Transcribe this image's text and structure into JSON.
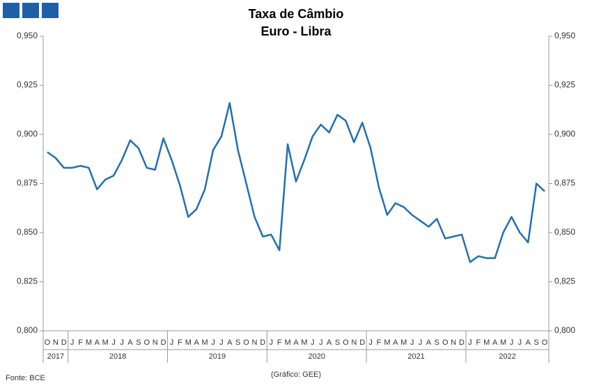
{
  "chart_data": {
    "type": "line",
    "title": "Taxa de Câmbio",
    "subtitle": "Euro - Libra",
    "source": "Fonte: BCE",
    "credit": "(Gráfico: GEE)",
    "groups": [
      {
        "year": "2017",
        "months": [
          "O",
          "N",
          "D"
        ]
      },
      {
        "year": "2018",
        "months": [
          "J",
          "F",
          "M",
          "A",
          "M",
          "J",
          "J",
          "A",
          "S",
          "O",
          "N",
          "D"
        ]
      },
      {
        "year": "2019",
        "months": [
          "J",
          "F",
          "M",
          "A",
          "M",
          "J",
          "J",
          "A",
          "S",
          "O",
          "N",
          "D"
        ]
      },
      {
        "year": "2020",
        "months": [
          "J",
          "F",
          "M",
          "A",
          "M",
          "J",
          "J",
          "A",
          "S",
          "O",
          "N",
          "D"
        ]
      },
      {
        "year": "2021",
        "months": [
          "J",
          "F",
          "M",
          "A",
          "M",
          "J",
          "J",
          "A",
          "S",
          "O",
          "N",
          "D"
        ]
      },
      {
        "year": "2022",
        "months": [
          "J",
          "F",
          "M",
          "A",
          "M",
          "J",
          "J",
          "A",
          "S",
          "O"
        ]
      }
    ],
    "series": [
      {
        "color": "#1f6fb5",
        "values": [
          0.891,
          0.888,
          0.883,
          0.883,
          0.884,
          0.883,
          0.872,
          0.877,
          0.879,
          0.887,
          0.897,
          0.893,
          0.883,
          0.882,
          0.898,
          0.887,
          0.874,
          0.858,
          0.862,
          0.872,
          0.892,
          0.899,
          0.916,
          0.892,
          0.875,
          0.858,
          0.848,
          0.849,
          0.841,
          0.895,
          0.876,
          0.887,
          0.899,
          0.905,
          0.901,
          0.91,
          0.907,
          0.896,
          0.906,
          0.893,
          0.873,
          0.859,
          0.865,
          0.863,
          0.859,
          0.856,
          0.853,
          0.857,
          0.847,
          0.848,
          0.849,
          0.835,
          0.838,
          0.837,
          0.837,
          0.85,
          0.858,
          0.85,
          0.845,
          0.875,
          0.871
        ]
      }
    ],
    "ylim": [
      0.8,
      0.95
    ],
    "yticks": [
      {
        "value": 0.8,
        "label": "0,800"
      },
      {
        "value": 0.825,
        "label": "0,825"
      },
      {
        "value": 0.85,
        "label": "0,850"
      },
      {
        "value": 0.875,
        "label": "0,875"
      },
      {
        "value": 0.9,
        "label": "0,900"
      },
      {
        "value": 0.925,
        "label": "0,925"
      },
      {
        "value": 0.95,
        "label": "0,950"
      }
    ],
    "y2lim": [
      0.8,
      0.95
    ],
    "y2ticks": [
      {
        "value": 0.8,
        "label": "0,800"
      },
      {
        "value": 0.825,
        "label": "0,825"
      },
      {
        "value": 0.85,
        "label": "0,850"
      },
      {
        "value": 0.875,
        "label": "0,875"
      },
      {
        "value": 0.9,
        "label": "0,900"
      },
      {
        "value": 0.925,
        "label": "0,925"
      },
      {
        "value": 0.95,
        "label": "0,950"
      }
    ]
  }
}
